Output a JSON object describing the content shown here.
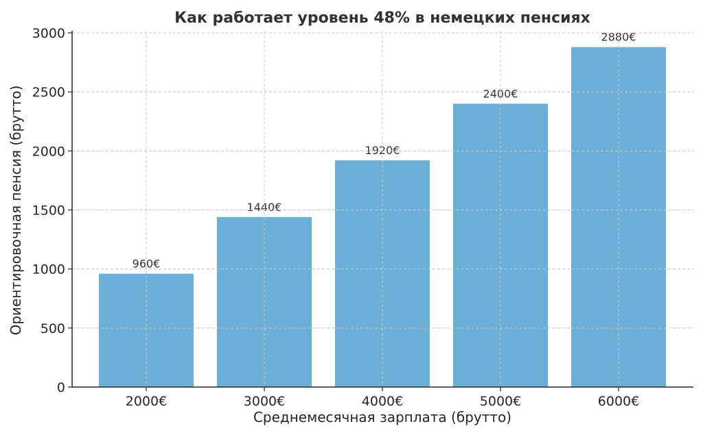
{
  "chart_data": {
    "type": "bar",
    "title": "Как работает уровень 48% в немецких пенсиях",
    "xlabel": "Среднемесячная зарплата (брутто)",
    "ylabel": "Ориентировочная пенсия (брутто)",
    "categories": [
      "2000€",
      "3000€",
      "4000€",
      "5000€",
      "6000€"
    ],
    "values": [
      960,
      1440,
      1920,
      2400,
      2880
    ],
    "data_labels": [
      "960€",
      "1440€",
      "1920€",
      "2400€",
      "2880€"
    ],
    "ylim": [
      0,
      3000
    ],
    "y_ticks": [
      0,
      500,
      1000,
      1500,
      2000,
      2500,
      3000
    ],
    "grid": true,
    "bar_color": "#6baed6"
  }
}
